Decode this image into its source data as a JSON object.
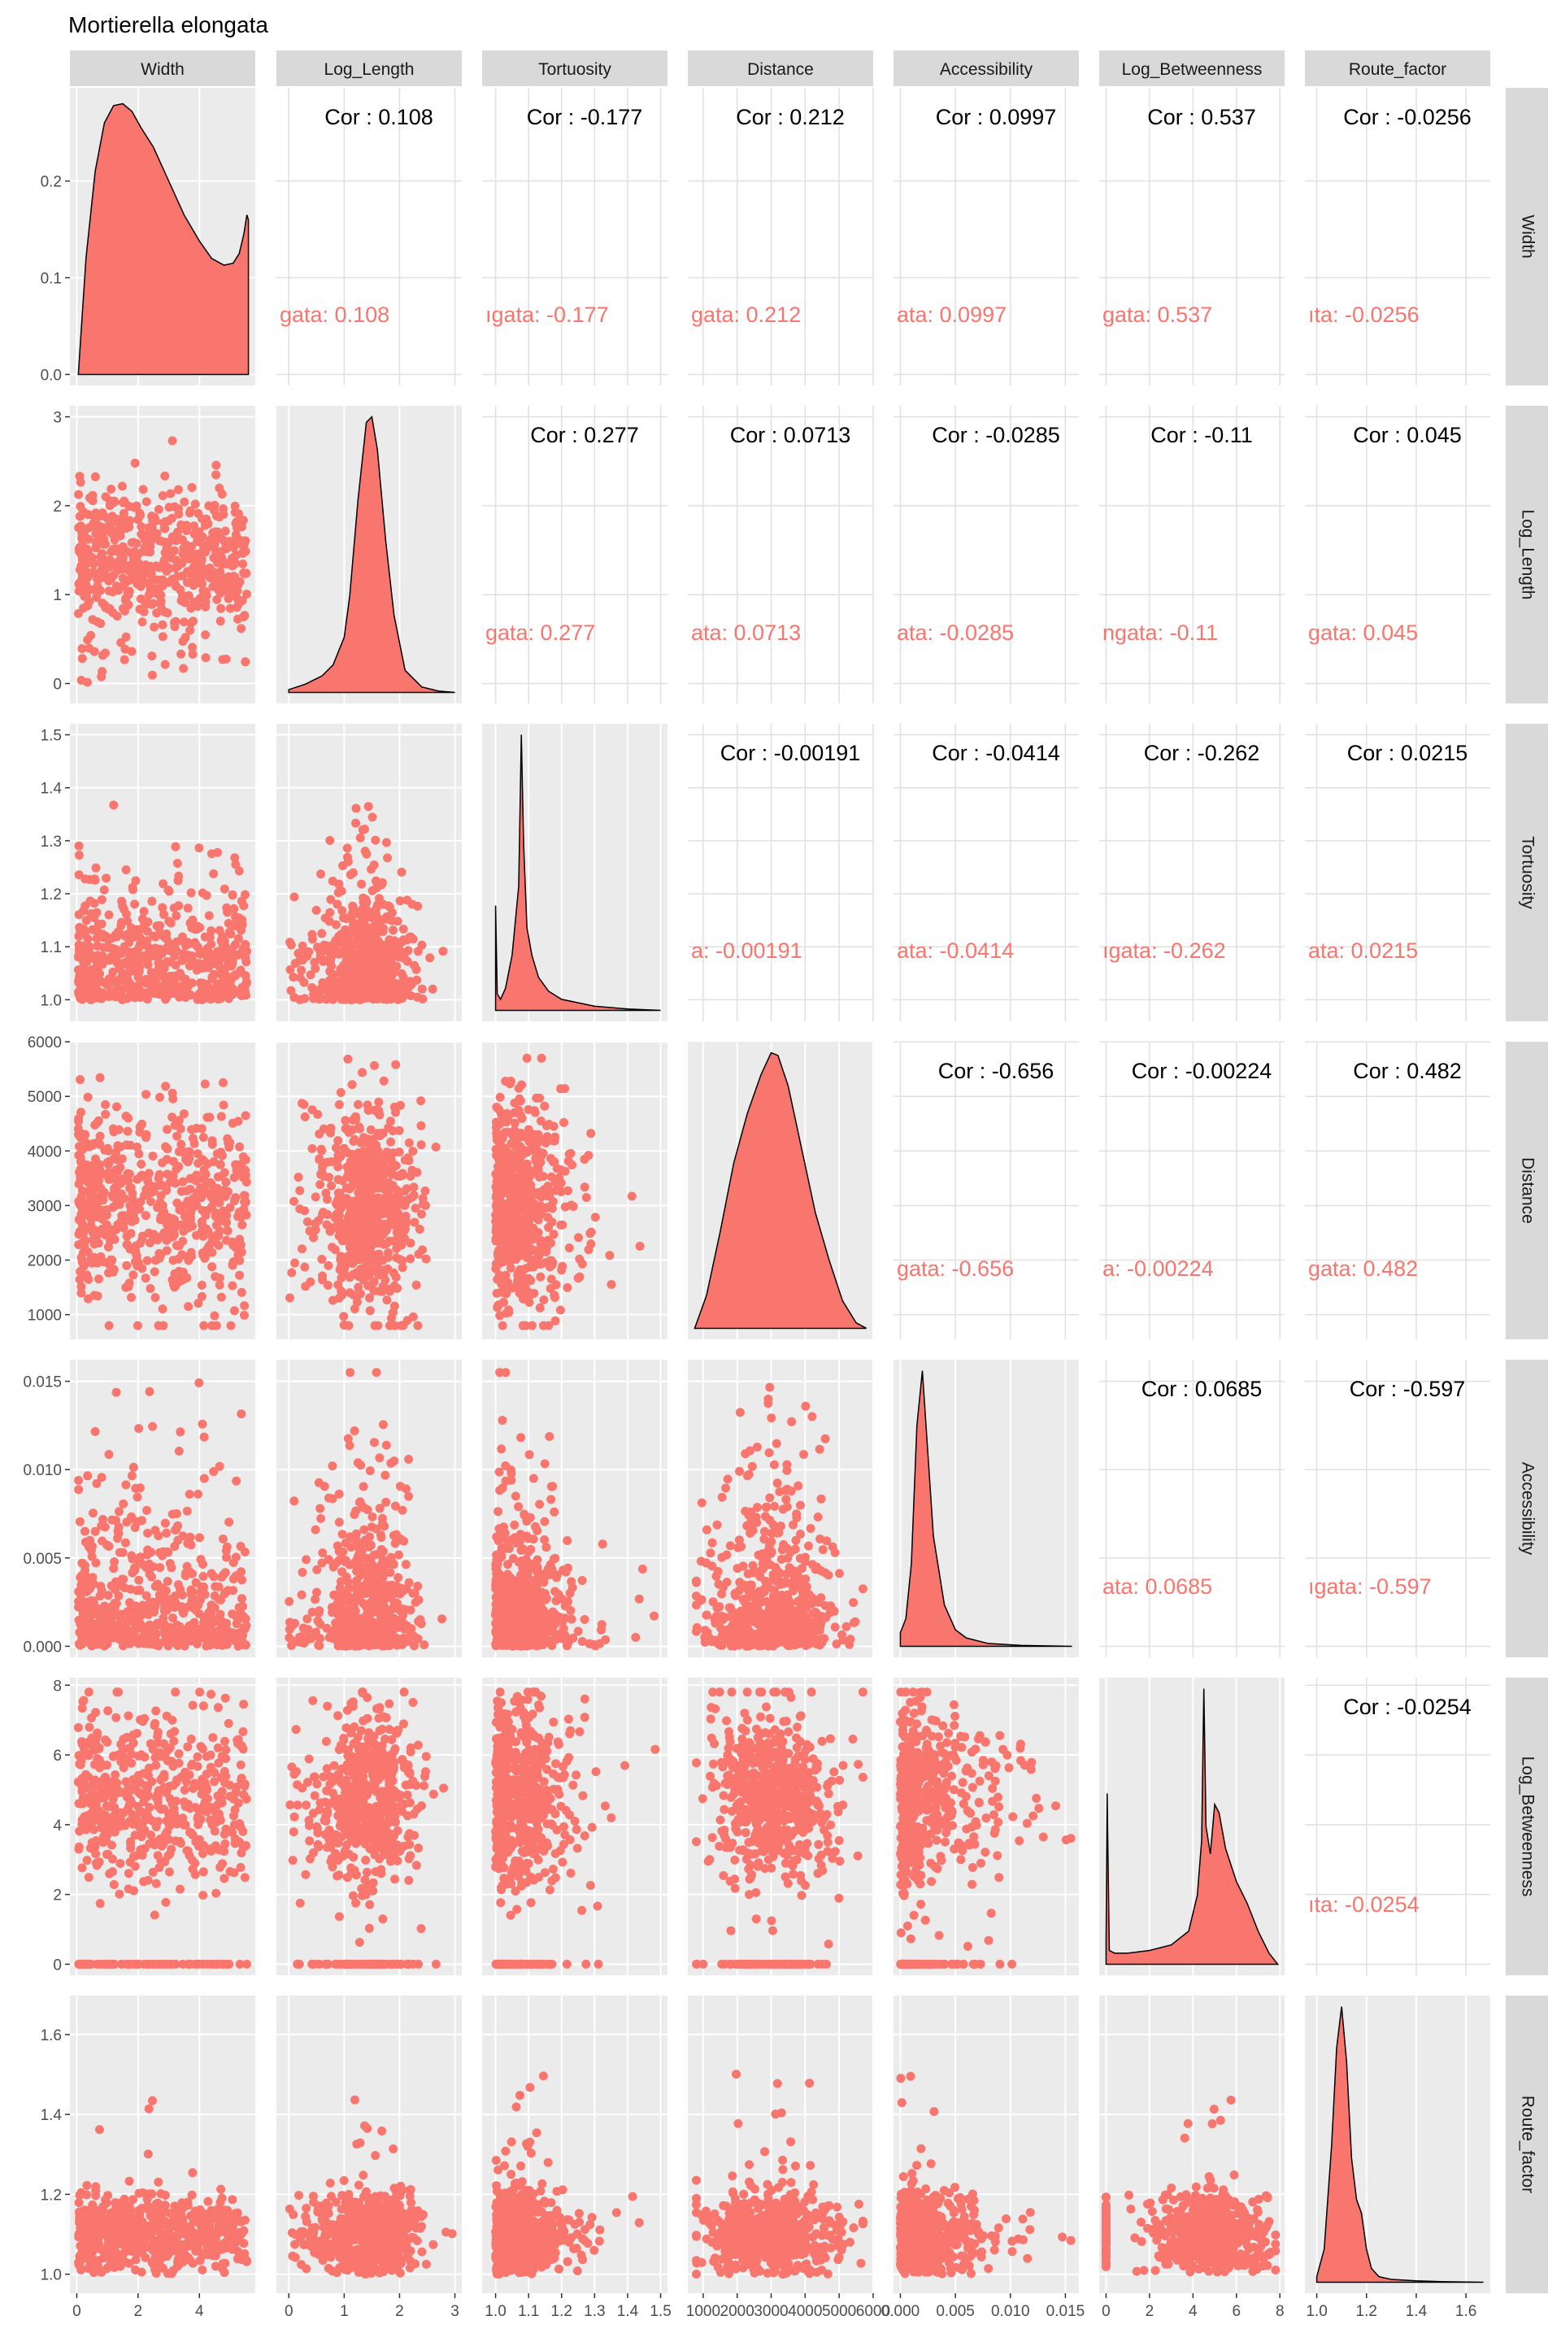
{
  "chart_data": {
    "type": "scatter-matrix",
    "title": "Mortierella elongata",
    "group_label": "Mortierella elongata",
    "colors": {
      "fill": "#F8766D",
      "panel": "#EBEBEB",
      "strip": "#D9D9D9",
      "grid_major": "#FFFFFF",
      "empty_panel_grid": "#E0E0E0"
    },
    "variables": [
      {
        "name": "Width",
        "range": [
          0,
          5.6
        ],
        "ticks": [
          0,
          2,
          4
        ],
        "tick_labels": [
          "0",
          "2",
          "4"
        ]
      },
      {
        "name": "Log_Length",
        "range": [
          -0.1,
          3.0
        ],
        "ticks": [
          0,
          1,
          2,
          3
        ],
        "tick_labels": [
          "0",
          "1",
          "2",
          "3"
        ]
      },
      {
        "name": "Tortuosity",
        "range": [
          0.98,
          1.5
        ],
        "ticks": [
          1.0,
          1.1,
          1.2,
          1.3,
          1.4,
          1.5
        ],
        "tick_labels": [
          "1.0",
          "1.1",
          "1.2",
          "1.3",
          "1.4",
          "1.5"
        ]
      },
      {
        "name": "Distance",
        "range": [
          750,
          5800
        ],
        "ticks": [
          1000,
          2000,
          3000,
          4000,
          5000,
          6000
        ],
        "tick_labels": [
          "1000",
          "2000",
          "3000",
          "4000",
          "5000",
          "6000"
        ]
      },
      {
        "name": "Accessibility",
        "range": [
          0,
          0.0156
        ],
        "ticks": [
          0,
          0.005,
          0.01,
          0.015
        ],
        "tick_labels": [
          "0.000",
          "0.005",
          "0.010",
          "0.015"
        ]
      },
      {
        "name": "Log_Betweenness",
        "range": [
          0,
          7.9
        ],
        "ticks": [
          0,
          2,
          4,
          6,
          8
        ],
        "tick_labels": [
          "0",
          "2",
          "4",
          "6",
          "8"
        ]
      },
      {
        "name": "Route_factor",
        "range": [
          0.98,
          1.67
        ],
        "ticks": [
          1.0,
          1.2,
          1.4,
          1.6
        ],
        "tick_labels": [
          "1.0",
          "1.2",
          "1.4",
          "1.6"
        ]
      }
    ],
    "width_density_yticks": [
      0.0,
      0.1,
      0.2
    ],
    "width_density_ytick_labels": [
      "0.0",
      "0.1",
      "0.2"
    ],
    "width_density_ymax": 0.285,
    "densities": [
      {
        "variable": "Width",
        "x": [
          0.05,
          0.3,
          0.6,
          0.9,
          1.2,
          1.5,
          1.8,
          2.1,
          2.5,
          3.0,
          3.5,
          4.0,
          4.4,
          4.8,
          5.1,
          5.3,
          5.45,
          5.55,
          5.6
        ],
        "y": [
          0.0,
          0.12,
          0.21,
          0.26,
          0.278,
          0.28,
          0.272,
          0.255,
          0.235,
          0.2,
          0.165,
          0.138,
          0.12,
          0.113,
          0.115,
          0.125,
          0.145,
          0.165,
          0.16
        ]
      },
      {
        "variable": "Log_Length",
        "x": [
          0.0,
          0.3,
          0.6,
          0.8,
          1.0,
          1.1,
          1.25,
          1.4,
          1.5,
          1.6,
          1.75,
          1.9,
          2.1,
          2.4,
          2.7,
          3.0
        ],
        "y": [
          0.01,
          0.03,
          0.06,
          0.1,
          0.2,
          0.35,
          0.7,
          0.98,
          1.0,
          0.88,
          0.55,
          0.28,
          0.08,
          0.02,
          0.005,
          0.0
        ]
      },
      {
        "variable": "Tortuosity",
        "x": [
          1.0,
          1.005,
          1.015,
          1.03,
          1.05,
          1.07,
          1.078,
          1.085,
          1.095,
          1.11,
          1.13,
          1.16,
          1.2,
          1.3,
          1.4,
          1.5
        ],
        "y": [
          0.38,
          0.06,
          0.04,
          0.08,
          0.2,
          0.45,
          1.0,
          0.6,
          0.3,
          0.2,
          0.12,
          0.07,
          0.04,
          0.015,
          0.005,
          0.0
        ]
      },
      {
        "variable": "Distance",
        "x": [
          750,
          1100,
          1500,
          1900,
          2300,
          2700,
          3000,
          3200,
          3500,
          3900,
          4300,
          4700,
          5100,
          5500,
          5800
        ],
        "y": [
          0.0,
          0.12,
          0.35,
          0.6,
          0.78,
          0.92,
          1.0,
          0.99,
          0.88,
          0.65,
          0.42,
          0.25,
          0.1,
          0.02,
          0.0
        ]
      },
      {
        "variable": "Accessibility",
        "x": [
          0.0,
          0.0005,
          0.001,
          0.0015,
          0.002,
          0.0025,
          0.003,
          0.004,
          0.005,
          0.006,
          0.008,
          0.011,
          0.0156
        ],
        "y": [
          0.05,
          0.1,
          0.3,
          0.8,
          1.0,
          0.7,
          0.4,
          0.15,
          0.06,
          0.03,
          0.01,
          0.003,
          0.0
        ]
      },
      {
        "variable": "Log_Betweenness",
        "x": [
          0.0,
          0.05,
          0.15,
          0.4,
          1.0,
          2.0,
          3.0,
          3.8,
          4.2,
          4.4,
          4.5,
          4.6,
          4.8,
          5.0,
          5.2,
          5.5,
          6.0,
          6.5,
          7.0,
          7.5,
          7.9
        ],
        "y": [
          0.08,
          0.62,
          0.05,
          0.04,
          0.04,
          0.05,
          0.07,
          0.12,
          0.25,
          0.45,
          1.0,
          0.5,
          0.4,
          0.58,
          0.55,
          0.42,
          0.3,
          0.22,
          0.12,
          0.04,
          0.0
        ]
      },
      {
        "variable": "Route_factor",
        "x": [
          1.0,
          1.03,
          1.06,
          1.08,
          1.1,
          1.12,
          1.14,
          1.16,
          1.18,
          1.2,
          1.22,
          1.25,
          1.3,
          1.4,
          1.5,
          1.67
        ],
        "y": [
          0.02,
          0.12,
          0.5,
          0.85,
          1.0,
          0.8,
          0.45,
          0.3,
          0.25,
          0.12,
          0.05,
          0.02,
          0.01,
          0.005,
          0.002,
          0.0
        ]
      }
    ],
    "correlations": [
      {
        "row": "Width",
        "col": "Log_Length",
        "overall": "Cor : 0.108",
        "group": "gata: 0.108"
      },
      {
        "row": "Width",
        "col": "Tortuosity",
        "overall": "Cor : -0.177",
        "group": "ıgata: -0.177"
      },
      {
        "row": "Width",
        "col": "Distance",
        "overall": "Cor : 0.212",
        "group": "gata: 0.212"
      },
      {
        "row": "Width",
        "col": "Accessibility",
        "overall": "Cor : 0.0997",
        "group": "ata: 0.0997"
      },
      {
        "row": "Width",
        "col": "Log_Betweenness",
        "overall": "Cor : 0.537",
        "group": "gata: 0.537"
      },
      {
        "row": "Width",
        "col": "Route_factor",
        "overall": "Cor : -0.0256",
        "group": "ıta: -0.0256"
      },
      {
        "row": "Log_Length",
        "col": "Tortuosity",
        "overall": "Cor : 0.277",
        "group": "gata: 0.277"
      },
      {
        "row": "Log_Length",
        "col": "Distance",
        "overall": "Cor : 0.0713",
        "group": "ata: 0.0713"
      },
      {
        "row": "Log_Length",
        "col": "Accessibility",
        "overall": "Cor : -0.0285",
        "group": "ata: -0.0285"
      },
      {
        "row": "Log_Length",
        "col": "Log_Betweenness",
        "overall": "Cor : -0.11",
        "group": "ngata: -0.11"
      },
      {
        "row": "Log_Length",
        "col": "Route_factor",
        "overall": "Cor : 0.045",
        "group": "gata: 0.045"
      },
      {
        "row": "Tortuosity",
        "col": "Distance",
        "overall": "Cor : -0.00191",
        "group": "a: -0.00191"
      },
      {
        "row": "Tortuosity",
        "col": "Accessibility",
        "overall": "Cor : -0.0414",
        "group": "ata: -0.0414"
      },
      {
        "row": "Tortuosity",
        "col": "Log_Betweenness",
        "overall": "Cor : -0.262",
        "group": "ıgata: -0.262"
      },
      {
        "row": "Tortuosity",
        "col": "Route_factor",
        "overall": "Cor : 0.0215",
        "group": "ata: 0.0215"
      },
      {
        "row": "Distance",
        "col": "Accessibility",
        "overall": "Cor : -0.656",
        "group": "gata: -0.656"
      },
      {
        "row": "Distance",
        "col": "Log_Betweenness",
        "overall": "Cor : -0.00224",
        "group": "a: -0.00224"
      },
      {
        "row": "Distance",
        "col": "Route_factor",
        "overall": "Cor : 0.482",
        "group": "gata: 0.482"
      },
      {
        "row": "Accessibility",
        "col": "Log_Betweenness",
        "overall": "Cor : 0.0685",
        "group": "ata: 0.0685"
      },
      {
        "row": "Accessibility",
        "col": "Route_factor",
        "overall": "Cor : -0.597",
        "group": "ıgata: -0.597"
      },
      {
        "row": "Log_Betweenness",
        "col": "Route_factor",
        "overall": "Cor : -0.0254",
        "group": "ıta: -0.0254"
      }
    ],
    "scatter_note": "Lower-triangle panels are dense scatter clouds of all observations of the given pair."
  }
}
